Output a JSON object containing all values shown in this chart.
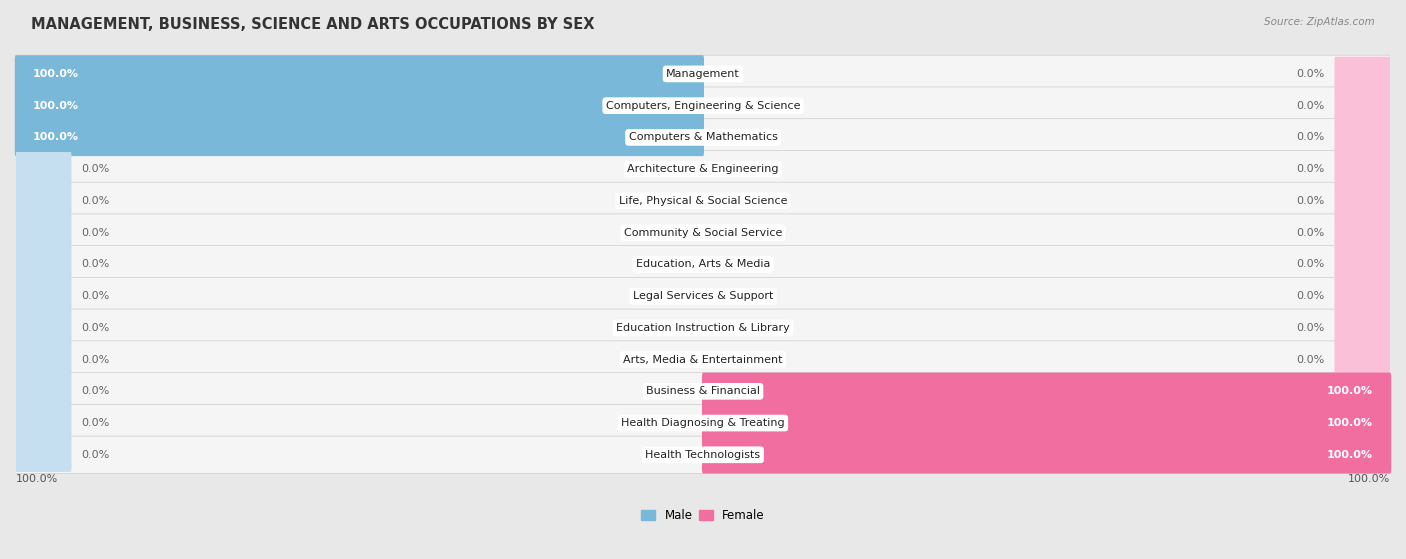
{
  "title": "MANAGEMENT, BUSINESS, SCIENCE AND ARTS OCCUPATIONS BY SEX",
  "source": "Source: ZipAtlas.com",
  "categories": [
    "Management",
    "Computers, Engineering & Science",
    "Computers & Mathematics",
    "Architecture & Engineering",
    "Life, Physical & Social Science",
    "Community & Social Service",
    "Education, Arts & Media",
    "Legal Services & Support",
    "Education Instruction & Library",
    "Arts, Media & Entertainment",
    "Business & Financial",
    "Health Diagnosing & Treating",
    "Health Technologists"
  ],
  "male_values": [
    100.0,
    100.0,
    100.0,
    0.0,
    0.0,
    0.0,
    0.0,
    0.0,
    0.0,
    0.0,
    0.0,
    0.0,
    0.0
  ],
  "female_values": [
    0.0,
    0.0,
    0.0,
    0.0,
    0.0,
    0.0,
    0.0,
    0.0,
    0.0,
    0.0,
    100.0,
    100.0,
    100.0
  ],
  "male_color": "#7ab8d9",
  "female_color": "#f06fa0",
  "male_color_faint": "#c5dff0",
  "female_color_faint": "#f9c0d8",
  "background_color": "#e8e8e8",
  "row_bg_color": "#f5f5f5",
  "title_fontsize": 10.5,
  "bar_label_fontsize": 8,
  "category_fontsize": 8,
  "legend_fontsize": 8.5,
  "source_fontsize": 7.5,
  "zero_stub_pct": 8
}
